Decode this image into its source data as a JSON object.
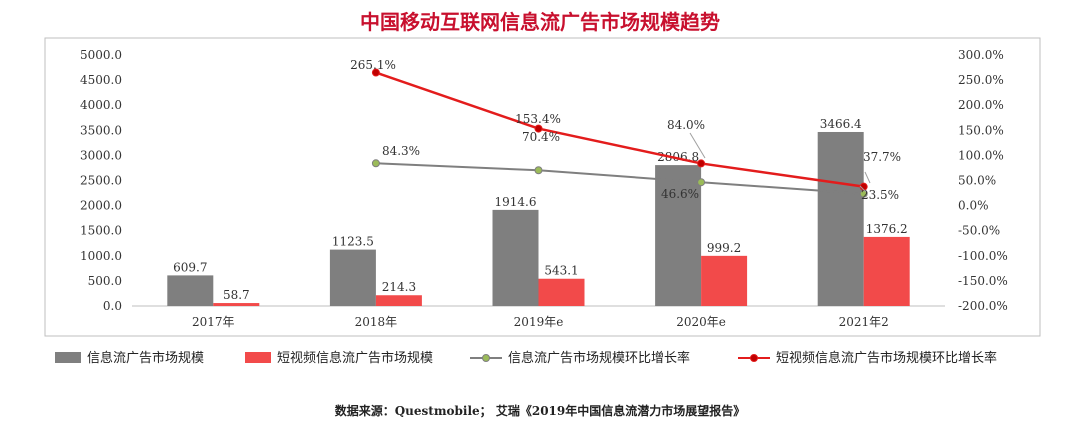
{
  "chart_data": {
    "type": "bar",
    "title": "中国移动互联网信息流广告市场规模趋势",
    "categories": [
      "2017年",
      "2018年",
      "2019年e",
      "2020年e",
      "2021年2"
    ],
    "left_axis": {
      "ylim": [
        0,
        5000
      ],
      "ticks": [
        "0.0",
        "500.0",
        "1000.0",
        "1500.0",
        "2000.0",
        "2500.0",
        "3000.0",
        "3500.0",
        "4000.0",
        "4500.0",
        "5000.0"
      ]
    },
    "right_axis": {
      "ylim": [
        -200,
        300
      ],
      "ticks": [
        "-200.0%",
        "-150.0%",
        "-100.0%",
        "-50.0%",
        "0.0%",
        "50.0%",
        "100.0%",
        "150.0%",
        "200.0%",
        "250.0%",
        "300.0%"
      ]
    },
    "series": [
      {
        "name": "信息流广告市场规模",
        "kind": "bar",
        "axis": "left",
        "color": "#7f7f7f",
        "values": [
          609.7,
          1123.5,
          1914.6,
          2806.8,
          3466.4
        ],
        "labels": [
          "609.7",
          "1123.5",
          "1914.6",
          "2806.8",
          "3466.4"
        ]
      },
      {
        "name": "短视频信息流广告市场规模",
        "kind": "bar",
        "axis": "left",
        "color": "#f24a4a",
        "values": [
          58.7,
          214.3,
          543.1,
          999.2,
          1376.2
        ],
        "labels": [
          "58.7",
          "214.3",
          "543.1",
          "999.2",
          "1376.2"
        ]
      },
      {
        "name": "信息流广告市场规模环比增长率",
        "kind": "line",
        "axis": "right",
        "color": "#7f7f7f",
        "marker_color": "#9bbb59",
        "values": [
          null,
          84.3,
          70.4,
          46.6,
          23.5
        ],
        "labels": [
          null,
          "84.3%",
          "70.4%",
          "46.6%",
          "23.5%"
        ]
      },
      {
        "name": "短视频信息流广告市场规模环比增长率",
        "kind": "line",
        "axis": "right",
        "color": "#e31c1c",
        "marker_color": "#c00000",
        "values": [
          null,
          265.1,
          153.4,
          84.0,
          37.7
        ],
        "labels": [
          null,
          "265.1%",
          "153.4%",
          "84.0%",
          "37.7%"
        ]
      }
    ],
    "legend_position": "bottom",
    "grid": false
  },
  "source": "数据来源：Questmobile；  艾瑞《2019年中国信息流潜力市场展望报告》"
}
